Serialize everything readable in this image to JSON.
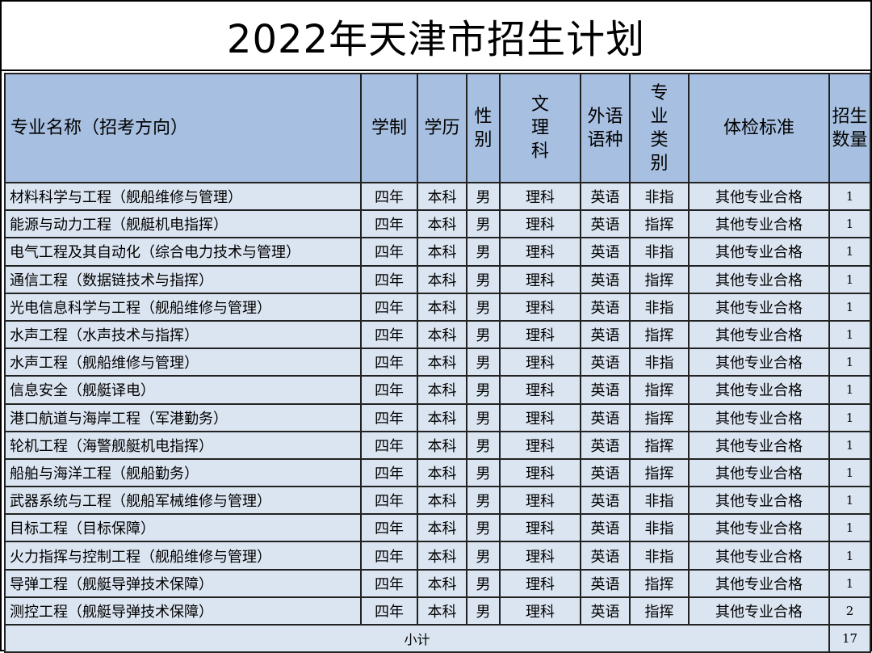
{
  "title": "2022年天津市招生计划",
  "headers": {
    "name": "专业名称（招考方向）",
    "duration": "学制",
    "degree": "学历",
    "gender": "性别",
    "track": "文理科",
    "language": "外语语种",
    "category": "专业类别",
    "physical": "体检标准",
    "count": "招生数量"
  },
  "rows": [
    {
      "name": "材料科学与工程（舰船维修与管理）",
      "duration": "四年",
      "degree": "本科",
      "gender": "男",
      "track": "理科",
      "language": "英语",
      "category": "非指",
      "physical": "其他专业合格",
      "count": "1"
    },
    {
      "name": "能源与动力工程（舰艇机电指挥）",
      "duration": "四年",
      "degree": "本科",
      "gender": "男",
      "track": "理科",
      "language": "英语",
      "category": "指挥",
      "physical": "其他专业合格",
      "count": "1"
    },
    {
      "name": "电气工程及其自动化（综合电力技术与管理）",
      "duration": "四年",
      "degree": "本科",
      "gender": "男",
      "track": "理科",
      "language": "英语",
      "category": "非指",
      "physical": "其他专业合格",
      "count": "1"
    },
    {
      "name": "通信工程（数据链技术与指挥）",
      "duration": "四年",
      "degree": "本科",
      "gender": "男",
      "track": "理科",
      "language": "英语",
      "category": "指挥",
      "physical": "其他专业合格",
      "count": "1"
    },
    {
      "name": "光电信息科学与工程（舰船维修与管理）",
      "duration": "四年",
      "degree": "本科",
      "gender": "男",
      "track": "理科",
      "language": "英语",
      "category": "非指",
      "physical": "其他专业合格",
      "count": "1"
    },
    {
      "name": "水声工程（水声技术与指挥）",
      "duration": "四年",
      "degree": "本科",
      "gender": "男",
      "track": "理科",
      "language": "英语",
      "category": "指挥",
      "physical": "其他专业合格",
      "count": "1"
    },
    {
      "name": "水声工程（舰船维修与管理）",
      "duration": "四年",
      "degree": "本科",
      "gender": "男",
      "track": "理科",
      "language": "英语",
      "category": "非指",
      "physical": "其他专业合格",
      "count": "1"
    },
    {
      "name": "信息安全（舰艇译电）",
      "duration": "四年",
      "degree": "本科",
      "gender": "男",
      "track": "理科",
      "language": "英语",
      "category": "指挥",
      "physical": "其他专业合格",
      "count": "1"
    },
    {
      "name": "港口航道与海岸工程（军港勤务）",
      "duration": "四年",
      "degree": "本科",
      "gender": "男",
      "track": "理科",
      "language": "英语",
      "category": "指挥",
      "physical": "其他专业合格",
      "count": "1"
    },
    {
      "name": "轮机工程（海警舰艇机电指挥）",
      "duration": "四年",
      "degree": "本科",
      "gender": "男",
      "track": "理科",
      "language": "英语",
      "category": "指挥",
      "physical": "其他专业合格",
      "count": "1"
    },
    {
      "name": "船舶与海洋工程（舰船勤务）",
      "duration": "四年",
      "degree": "本科",
      "gender": "男",
      "track": "理科",
      "language": "英语",
      "category": "指挥",
      "physical": "其他专业合格",
      "count": "1"
    },
    {
      "name": "武器系统与工程（舰船军械维修与管理）",
      "duration": "四年",
      "degree": "本科",
      "gender": "男",
      "track": "理科",
      "language": "英语",
      "category": "非指",
      "physical": "其他专业合格",
      "count": "1"
    },
    {
      "name": "目标工程（目标保障）",
      "duration": "四年",
      "degree": "本科",
      "gender": "男",
      "track": "理科",
      "language": "英语",
      "category": "非指",
      "physical": "其他专业合格",
      "count": "1"
    },
    {
      "name": "火力指挥与控制工程（舰船维修与管理）",
      "duration": "四年",
      "degree": "本科",
      "gender": "男",
      "track": "理科",
      "language": "英语",
      "category": "非指",
      "physical": "其他专业合格",
      "count": "1"
    },
    {
      "name": "导弹工程（舰艇导弹技术保障）",
      "duration": "四年",
      "degree": "本科",
      "gender": "男",
      "track": "理科",
      "language": "英语",
      "category": "指挥",
      "physical": "其他专业合格",
      "count": "1"
    },
    {
      "name": "测控工程（舰艇导弹技术保障）",
      "duration": "四年",
      "degree": "本科",
      "gender": "男",
      "track": "理科",
      "language": "英语",
      "category": "指挥",
      "physical": "其他专业合格",
      "count": "2"
    }
  ],
  "footer": {
    "label": "小计",
    "total": "17"
  },
  "colors": {
    "header_bg": "#a7bfe0",
    "row_bg": "#dbe5f1",
    "border": "#222222"
  }
}
